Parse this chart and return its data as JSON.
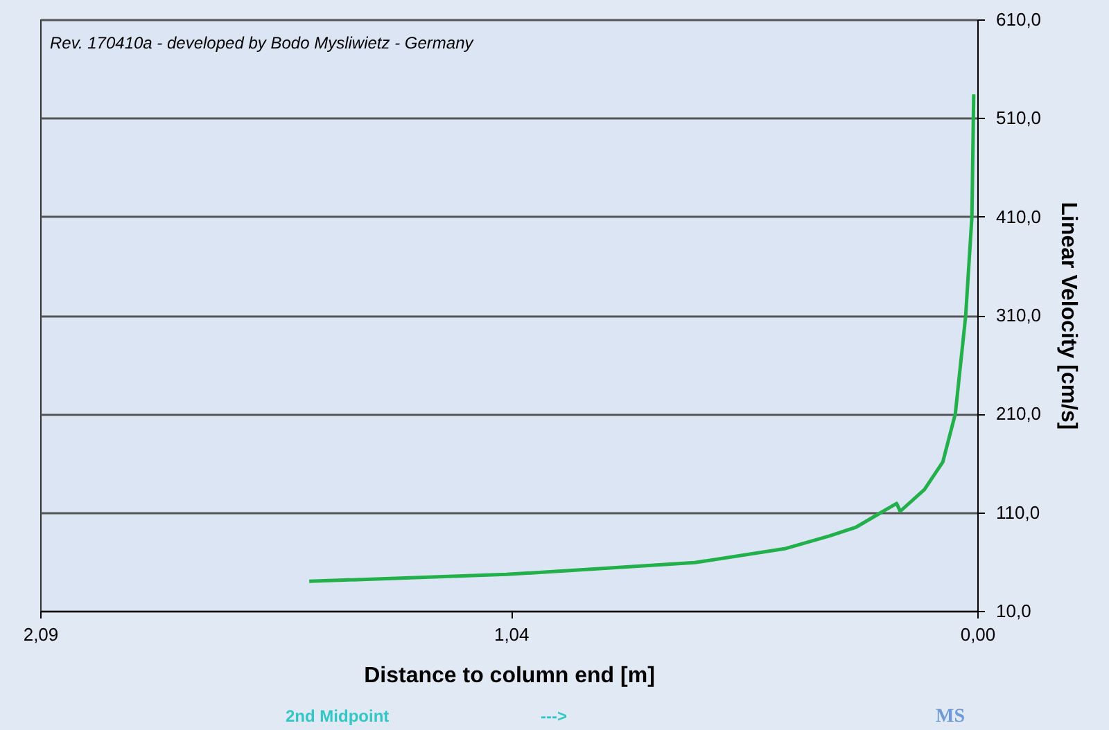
{
  "chart_data": {
    "type": "line",
    "xlabel": "Distance to column end [m]",
    "ylabel": "Linear Velocity [cm/s]",
    "x": [
      1.49,
      1.05,
      0.94,
      0.63,
      0.43,
      0.33,
      0.27,
      0.18,
      0.172,
      0.118,
      0.077,
      0.049,
      0.026,
      0.012,
      0.008
    ],
    "series": [
      {
        "color": "#22b04b",
        "values": [
          40,
          47,
          50,
          59,
          73,
          86,
          95,
          119,
          111,
          133,
          161,
          210,
          309,
          410,
          534
        ]
      }
    ],
    "xlim": [
      2.09,
      0
    ],
    "xticks": [
      {
        "value": 2.09,
        "label": "2,09"
      },
      {
        "value": 1.04,
        "label": "1,04"
      },
      {
        "value": 0,
        "label": "0,00"
      }
    ],
    "ylim": [
      10,
      610
    ],
    "yticks": [
      {
        "value": 10,
        "label": "10,0"
      },
      {
        "value": 110,
        "label": "110,0"
      },
      {
        "value": 210,
        "label": "210,0"
      },
      {
        "value": 310,
        "label": "310,0"
      },
      {
        "value": 410,
        "label": "410,0"
      },
      {
        "value": 510,
        "label": "510,0"
      },
      {
        "value": 610,
        "label": "610,0"
      }
    ],
    "grid": "y",
    "marker": "none",
    "line_style": "solid",
    "annotations": [
      "Rev. 170410a - developed by Bodo Mysliwietz - Germany",
      "2nd Midpoint",
      "--->",
      "MS"
    ]
  }
}
